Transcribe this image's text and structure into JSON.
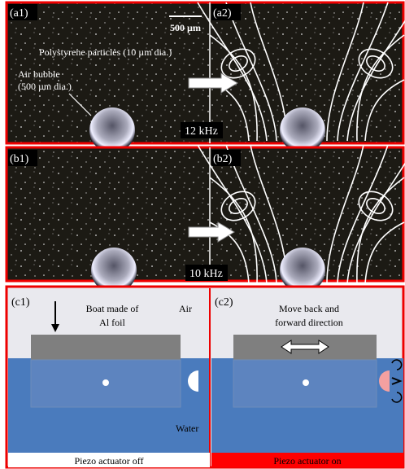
{
  "panels": {
    "a1": "(a1)",
    "a2": "(a2)",
    "b1": "(b1)",
    "b2": "(b2)",
    "c1": "(c1)",
    "c2": "(c2)"
  },
  "scale_bar": "500 µm",
  "particles_label": "Polystyrene particles (10 µm dia.)",
  "bubble_label": [
    "Air bubble",
    "(500 µm dia.)"
  ],
  "freq_a": "12 kHz",
  "freq_b": "10 kHz",
  "c1": {
    "boat": [
      "Boat made of",
      "Al foil"
    ],
    "air": "Air",
    "water": "Water",
    "status": "Piezo actuator off"
  },
  "c2": {
    "motion": [
      "Move back and",
      "forward direction"
    ],
    "status": "Piezo actuator on"
  }
}
